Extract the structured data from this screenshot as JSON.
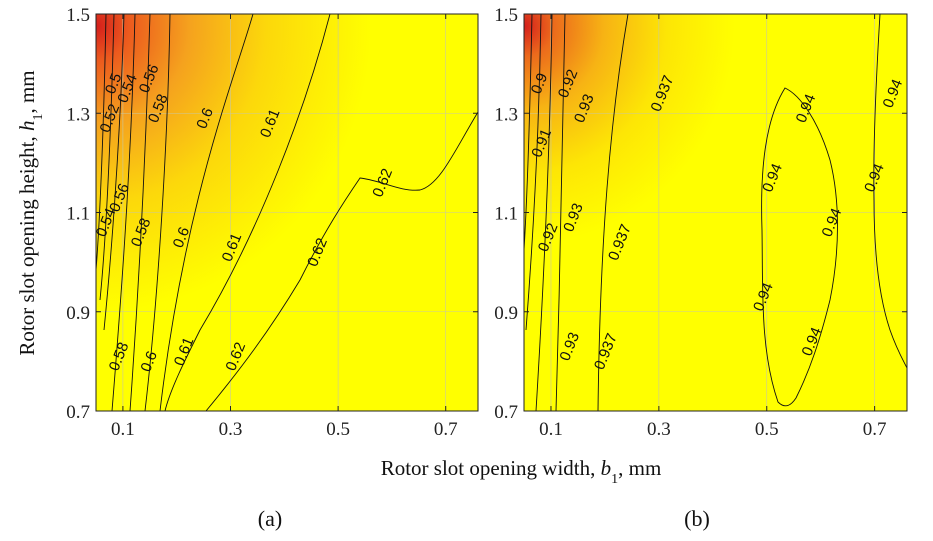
{
  "figure": {
    "xlabel": "Rotor slot opening width, b1, mm",
    "xlabel_main": "Rotor slot opening width, ",
    "xlabel_sym": "b",
    "xlabel_sub": "1",
    "xlabel_tail": ", mm",
    "ylabel_main": "Rotor slot opening height, ",
    "ylabel_sym": "h",
    "ylabel_sub": "1",
    "ylabel_tail": ", mm"
  },
  "chart_data": [
    {
      "type": "heatmap",
      "panel": "(a)",
      "xlim": [
        0.05,
        0.76
      ],
      "ylim": [
        0.7,
        1.5
      ],
      "x_ticks": [
        "0.1",
        "0.3",
        "0.5",
        "0.7"
      ],
      "y_ticks": [
        "0.7",
        "0.9",
        "1.1",
        "1.3",
        "1.5"
      ],
      "colormap": [
        "#d7261e",
        "#f39a1d",
        "#fde102",
        "#ffff00"
      ],
      "grid": true,
      "contours": [
        {
          "level": "0.5",
          "label_at": [
            [
              0.082,
              1.36
            ]
          ]
        },
        {
          "level": "0.52",
          "label_at": [
            [
              0.075,
              1.29
            ]
          ]
        },
        {
          "level": "0.54",
          "label_at": [
            [
              0.108,
              1.35
            ],
            [
              0.068,
              1.08
            ]
          ]
        },
        {
          "level": "0.56",
          "label_at": [
            [
              0.148,
              1.37
            ],
            [
              0.093,
              1.13
            ]
          ]
        },
        {
          "level": "0.58",
          "label_at": [
            [
              0.165,
              1.31
            ],
            [
              0.133,
              1.06
            ],
            [
              0.092,
              0.81
            ]
          ]
        },
        {
          "level": "0.6",
          "label_at": [
            [
              0.252,
              1.29
            ],
            [
              0.208,
              1.05
            ],
            [
              0.148,
              0.8
            ]
          ]
        },
        {
          "level": "0.61",
          "label_at": [
            [
              0.373,
              1.28
            ],
            [
              0.302,
              1.03
            ],
            [
              0.213,
              0.82
            ]
          ]
        },
        {
          "level": "0.62",
          "label_at": [
            [
              0.582,
              1.16
            ],
            [
              0.461,
              1.02
            ],
            [
              0.309,
              0.81
            ]
          ]
        }
      ]
    },
    {
      "type": "heatmap",
      "panel": "(b)",
      "xlim": [
        0.05,
        0.76
      ],
      "ylim": [
        0.7,
        1.5
      ],
      "x_ticks": [
        "0.1",
        "0.3",
        "0.5",
        "0.7"
      ],
      "y_ticks": [
        "0.7",
        "0.9",
        "1.1",
        "1.3",
        "1.5"
      ],
      "colormap": [
        "#d7261e",
        "#f39a1d",
        "#fde102",
        "#ffff00"
      ],
      "grid": true,
      "contours": [
        {
          "level": "0.9",
          "label_at": [
            [
              0.078,
              1.36
            ]
          ]
        },
        {
          "level": "0.91",
          "label_at": [
            [
              0.082,
              1.24
            ]
          ]
        },
        {
          "level": "0.92",
          "label_at": [
            [
              0.131,
              1.36
            ],
            [
              0.094,
              1.05
            ]
          ]
        },
        {
          "level": "0.93",
          "label_at": [
            [
              0.161,
              1.31
            ],
            [
              0.141,
              1.09
            ],
            [
              0.134,
              0.83
            ]
          ]
        },
        {
          "level": "0.937",
          "label_at": [
            [
              0.306,
              1.34
            ],
            [
              0.227,
              1.04
            ],
            [
              0.201,
              0.82
            ]
          ]
        },
        {
          "level": "0.94",
          "label_at": [
            [
              0.572,
              1.31
            ],
            [
              0.51,
              1.17
            ],
            [
              0.62,
              1.08
            ],
            [
              0.493,
              0.93
            ],
            [
              0.583,
              0.84
            ],
            [
              0.733,
              1.34
            ],
            [
              0.699,
              1.17
            ]
          ]
        }
      ]
    }
  ],
  "panel_labels": [
    "(a)",
    "(b)"
  ]
}
